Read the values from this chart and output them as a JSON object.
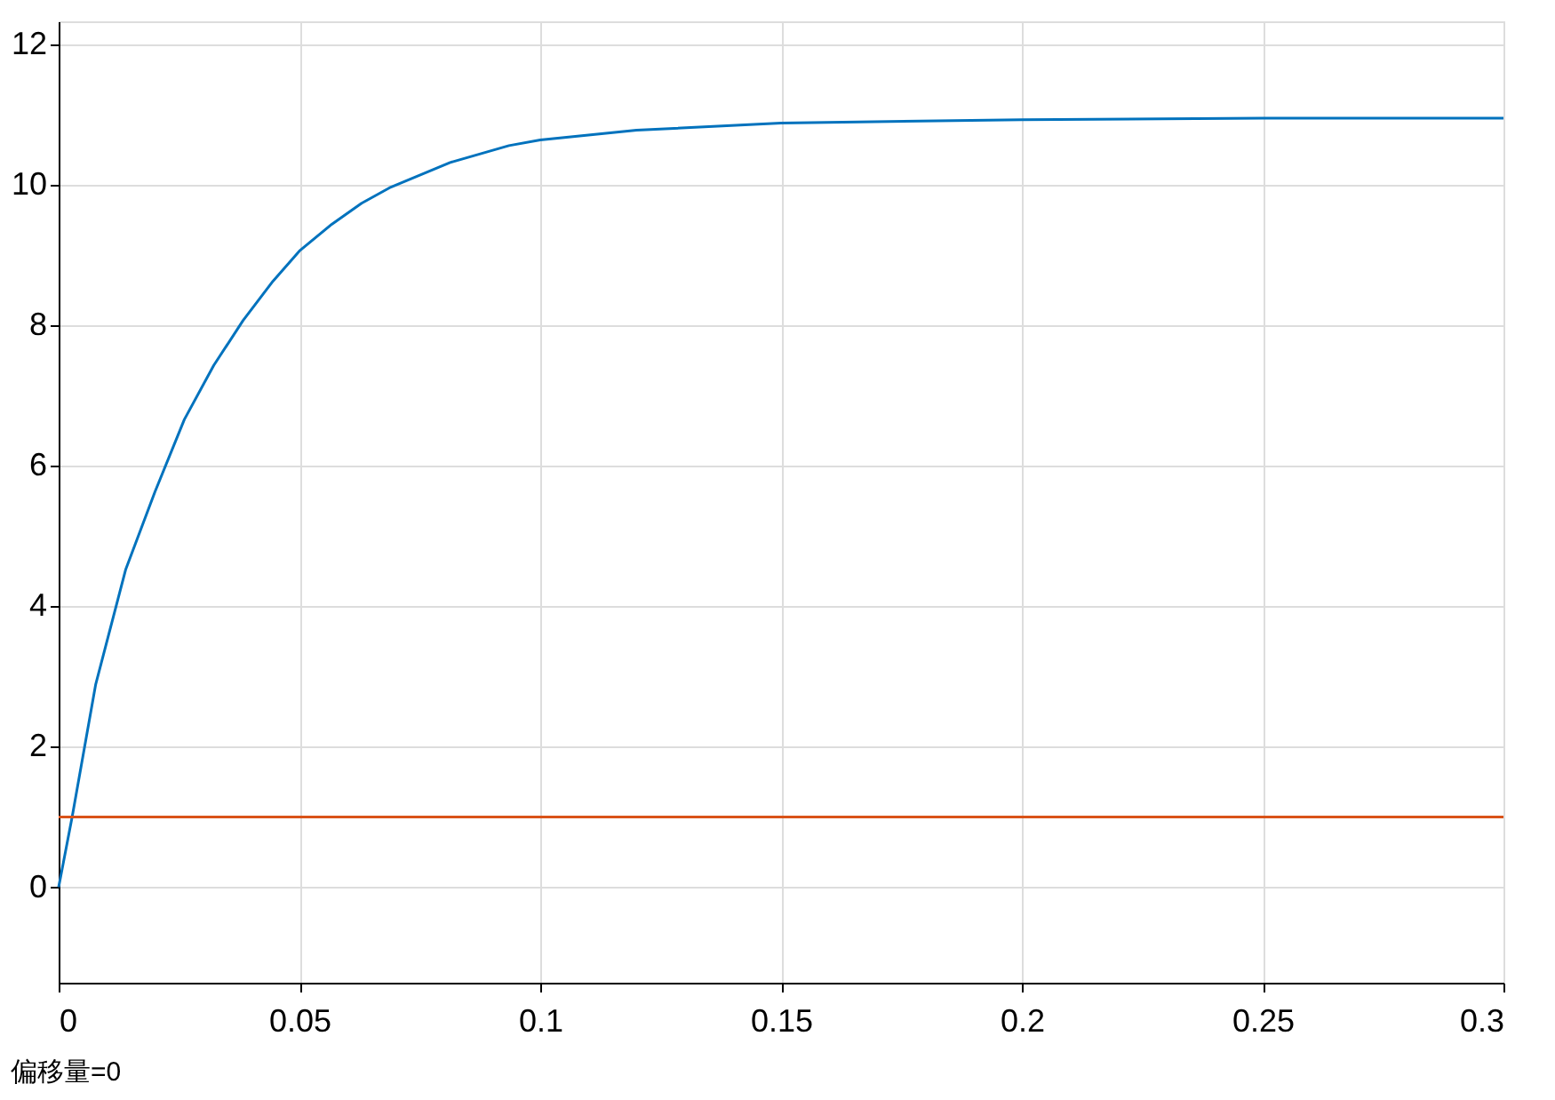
{
  "chart_data": {
    "type": "line",
    "xlim": [
      0,
      0.3
    ],
    "ylim": [
      -1.36,
      12.33
    ],
    "xticks": [
      0,
      0.05,
      0.1,
      0.15,
      0.2,
      0.25,
      0.3
    ],
    "yticks": [
      0,
      2,
      4,
      6,
      8,
      10,
      12
    ],
    "grid": true,
    "legend": false,
    "annotations": [
      "偏移量=0"
    ],
    "series": [
      {
        "color": "#0072bd",
        "x": [
          0,
          0.0028,
          0.0077,
          0.0139,
          0.02,
          0.0261,
          0.0322,
          0.0383,
          0.0445,
          0.05,
          0.0567,
          0.0629,
          0.069,
          0.0813,
          0.0935,
          0.1,
          0.12,
          0.15,
          0.2,
          0.25,
          0.3
        ],
        "values": [
          0,
          1.0,
          2.89,
          4.52,
          5.63,
          6.66,
          7.43,
          8.07,
          8.63,
          9.06,
          9.44,
          9.74,
          9.97,
          10.32,
          10.56,
          10.64,
          10.78,
          10.88,
          10.93,
          10.95,
          10.95
        ]
      },
      {
        "color": "#d95319",
        "x": [
          0,
          0.3
        ],
        "values": [
          1,
          1
        ]
      }
    ]
  }
}
